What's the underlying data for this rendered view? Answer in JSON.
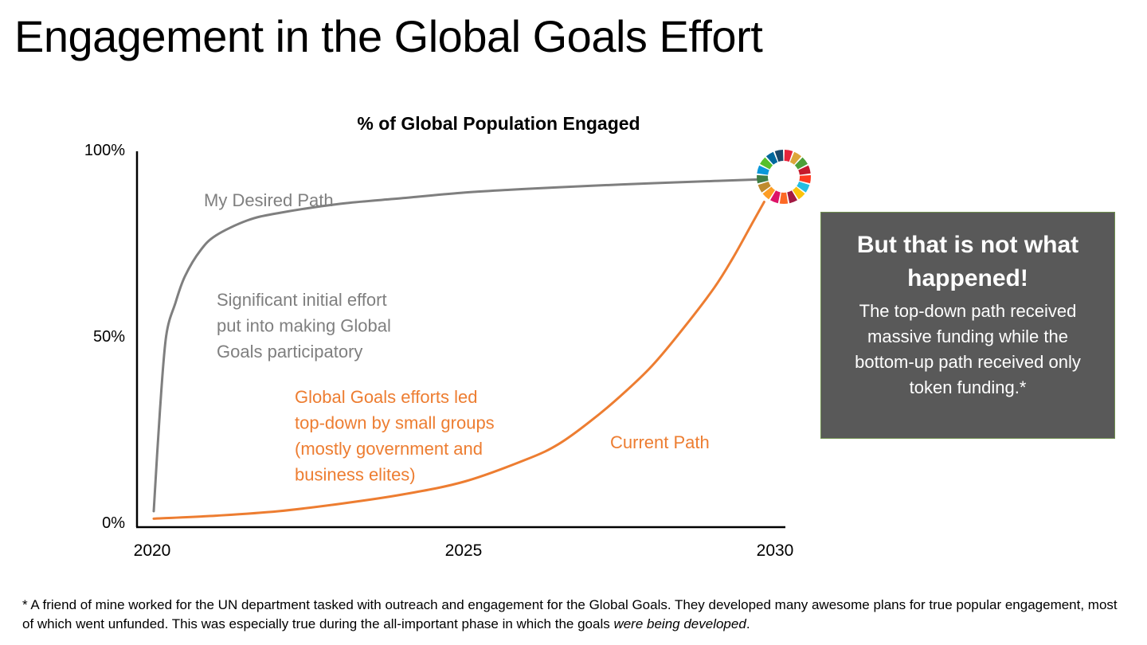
{
  "title": "Engagement in the Global Goals Effort",
  "chart_data": {
    "type": "line",
    "title": "% of Global Population Engaged",
    "xlabel": "",
    "ylabel": "",
    "xlim": [
      2020,
      2030
    ],
    "ylim": [
      0,
      100
    ],
    "x_ticks": [
      {
        "value": 2020,
        "label": "2020"
      },
      {
        "value": 2025,
        "label": "2025"
      },
      {
        "value": 2030,
        "label": "2030"
      }
    ],
    "y_ticks": [
      {
        "value": 0,
        "label": "0%"
      },
      {
        "value": 50,
        "label": "50%"
      },
      {
        "value": 100,
        "label": "100%"
      }
    ],
    "series": [
      {
        "name": "My Desired Path",
        "color": "#7f7f7f",
        "x": [
          2020.0,
          2020.1,
          2020.2,
          2020.35,
          2020.5,
          2020.75,
          2021.0,
          2021.5,
          2022.0,
          2023.0,
          2024.0,
          2025.0,
          2026.0,
          2027.0,
          2028.0,
          2029.0,
          2029.7
        ],
        "values": [
          3,
          30,
          50,
          59,
          66,
          73,
          77,
          81,
          83,
          85.5,
          87,
          88.5,
          89.5,
          90.3,
          91,
          91.6,
          92
        ]
      },
      {
        "name": "Current Path",
        "color": "#ed7d31",
        "x": [
          2020.0,
          2021.0,
          2022.0,
          2023.0,
          2024.0,
          2025.0,
          2026.0,
          2026.5,
          2027.0,
          2027.5,
          2028.0,
          2028.5,
          2029.0,
          2029.3,
          2029.6,
          2029.8
        ],
        "values": [
          1,
          1.8,
          3,
          5,
          7.5,
          11,
          17,
          21,
          27,
          34,
          42,
          52,
          63,
          71,
          80,
          86
        ]
      }
    ],
    "annotations": [
      {
        "text": "My Desired Path",
        "color": "#7f7f7f"
      },
      {
        "text": "Significant initial effort put into making Global Goals participatory",
        "color": "#7f7f7f"
      },
      {
        "text": "Global Goals efforts led top-down by small groups (mostly government and business elites)",
        "color": "#ed7d31"
      },
      {
        "text": "Current Path",
        "color": "#ed7d31"
      }
    ],
    "sdg_wheel_colors": [
      "#e5243b",
      "#dda63a",
      "#4c9f38",
      "#c5192d",
      "#ff3a21",
      "#26bde2",
      "#fcc30b",
      "#a21942",
      "#fd6925",
      "#dd1367",
      "#fd9d24",
      "#bf8b2e",
      "#3f7e44",
      "#0a97d9",
      "#56c02b",
      "#00689d",
      "#19486a"
    ]
  },
  "annotation_lines": {
    "desired_effort": [
      "Significant initial effort",
      "put into making Global",
      "Goals participatory"
    ],
    "current_effort": [
      "Global Goals efforts led",
      "top-down by small groups",
      "(mostly government and",
      "business elites)"
    ]
  },
  "callout": {
    "heading": "But that is not what happened!",
    "body": "The top-down path received massive funding while the bottom-up path received only token funding.*"
  },
  "footnote": {
    "text": "* A friend of mine worked for the UN department tasked with outreach and engagement for the Global Goals. They developed many awesome plans for true popular engagement, most of which went unfunded. This was especially true during the all-important phase in which the goals ",
    "italic": "were being developed",
    "end": "."
  }
}
